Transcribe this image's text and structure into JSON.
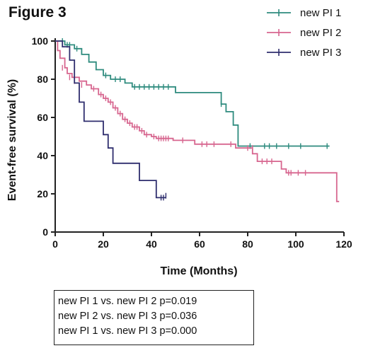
{
  "figure_title": "Figure 3",
  "stats": [
    "new PI 1 vs. new PI 2 p=0.019",
    "new PI 2 vs. new PI 3 p=0.036",
    "new PI 1 vs. new PI 3 p=0.000"
  ],
  "chart_data": {
    "type": "line",
    "subtype": "kaplan-meier step",
    "title": "Figure 3",
    "xlabel": "Time (Months)",
    "ylabel": "Event-free survival (%)",
    "xlim": [
      0,
      120
    ],
    "ylim": [
      0,
      100
    ],
    "xticks": [
      0,
      20,
      40,
      60,
      80,
      100,
      120
    ],
    "yticks": [
      0,
      20,
      40,
      60,
      80,
      100
    ],
    "grid": false,
    "legend_position": "top-right",
    "series": [
      {
        "name": "new PI 1",
        "color": "#2e8b7e",
        "points": [
          [
            0,
            100
          ],
          [
            4,
            98
          ],
          [
            8,
            96
          ],
          [
            11,
            93
          ],
          [
            14,
            89
          ],
          [
            17,
            85
          ],
          [
            20,
            82
          ],
          [
            23,
            80
          ],
          [
            29,
            78
          ],
          [
            32,
            76
          ],
          [
            50,
            73
          ],
          [
            69,
            67
          ],
          [
            71,
            63
          ],
          [
            74,
            56
          ],
          [
            76,
            45
          ],
          [
            114,
            45
          ]
        ],
        "censored": [
          [
            3,
            100
          ],
          [
            5,
            98
          ],
          [
            6,
            98
          ],
          [
            9,
            96
          ],
          [
            21,
            82
          ],
          [
            25,
            80
          ],
          [
            27,
            80
          ],
          [
            33,
            76
          ],
          [
            35,
            76
          ],
          [
            37,
            76
          ],
          [
            39,
            76
          ],
          [
            41,
            76
          ],
          [
            43,
            76
          ],
          [
            45,
            76
          ],
          [
            47,
            76
          ],
          [
            69,
            67
          ],
          [
            81,
            45
          ],
          [
            87,
            45
          ],
          [
            89,
            45
          ],
          [
            92,
            45
          ],
          [
            97,
            45
          ],
          [
            102,
            45
          ],
          [
            113,
            45
          ]
        ]
      },
      {
        "name": "new PI 2",
        "color": "#d7668f",
        "points": [
          [
            0,
            100
          ],
          [
            1,
            95
          ],
          [
            2,
            91
          ],
          [
            4,
            86
          ],
          [
            5,
            83
          ],
          [
            7,
            81
          ],
          [
            10,
            79
          ],
          [
            13,
            77
          ],
          [
            15,
            75
          ],
          [
            18,
            72
          ],
          [
            20,
            70
          ],
          [
            22,
            68
          ],
          [
            24,
            65
          ],
          [
            26,
            62
          ],
          [
            28,
            59
          ],
          [
            30,
            57
          ],
          [
            32,
            55
          ],
          [
            35,
            53
          ],
          [
            37,
            51
          ],
          [
            40,
            50
          ],
          [
            42,
            49
          ],
          [
            49,
            48
          ],
          [
            58,
            46
          ],
          [
            75,
            44
          ],
          [
            82,
            41
          ],
          [
            84,
            37
          ],
          [
            94,
            33
          ],
          [
            96,
            31
          ],
          [
            116,
            31
          ],
          [
            117,
            16
          ],
          [
            118,
            16
          ]
        ],
        "censored": [
          [
            3,
            86
          ],
          [
            6,
            81
          ],
          [
            8,
            79
          ],
          [
            11,
            77
          ],
          [
            16,
            75
          ],
          [
            19,
            72
          ],
          [
            21,
            70
          ],
          [
            23,
            68
          ],
          [
            25,
            65
          ],
          [
            27,
            62
          ],
          [
            29,
            59
          ],
          [
            31,
            57
          ],
          [
            33,
            55
          ],
          [
            34,
            55
          ],
          [
            36,
            53
          ],
          [
            38,
            51
          ],
          [
            41,
            50
          ],
          [
            43,
            49
          ],
          [
            44,
            49
          ],
          [
            45,
            49
          ],
          [
            46,
            49
          ],
          [
            47,
            49
          ],
          [
            53,
            48
          ],
          [
            61,
            46
          ],
          [
            63,
            46
          ],
          [
            66,
            46
          ],
          [
            73,
            46
          ],
          [
            80,
            44
          ],
          [
            82,
            44
          ],
          [
            86,
            37
          ],
          [
            88,
            37
          ],
          [
            90,
            37
          ],
          [
            97,
            31
          ],
          [
            98,
            31
          ],
          [
            101,
            31
          ],
          [
            104,
            31
          ]
        ]
      },
      {
        "name": "new PI 3",
        "color": "#2f2e6e",
        "points": [
          [
            0,
            100
          ],
          [
            3,
            97
          ],
          [
            6,
            90
          ],
          [
            8,
            78
          ],
          [
            10,
            68
          ],
          [
            12,
            58
          ],
          [
            19,
            58
          ],
          [
            20,
            51
          ],
          [
            22,
            44
          ],
          [
            24,
            36
          ],
          [
            34,
            36
          ],
          [
            35,
            27
          ],
          [
            40,
            27
          ],
          [
            42,
            18
          ],
          [
            46,
            18
          ]
        ],
        "censored": [
          [
            44,
            18
          ],
          [
            45,
            18
          ],
          [
            46,
            19
          ]
        ]
      }
    ]
  }
}
